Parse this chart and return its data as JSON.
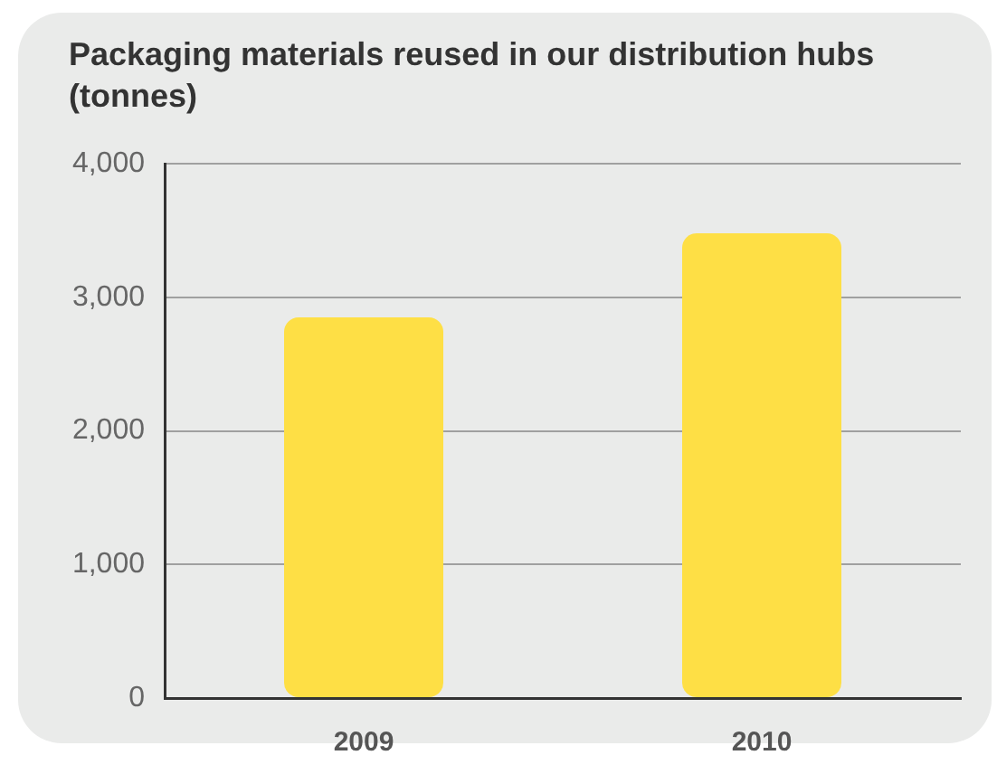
{
  "chart_data": {
    "type": "bar",
    "title": "Packaging materials reused in our distribution hubs (tonnes)",
    "categories": [
      "2009",
      "2010"
    ],
    "values": [
      2850,
      3480
    ],
    "color": "#fedf45",
    "ylim": [
      0,
      4000
    ],
    "yticks": [
      0,
      {
        "value": 1000,
        "label": "1,000"
      },
      {
        "value": 2000,
        "label": "2,000"
      },
      {
        "value": 3000,
        "label": "3,000"
      },
      {
        "value": 4000,
        "label": "4,000"
      }
    ],
    "grid": "y",
    "legend": false
  }
}
